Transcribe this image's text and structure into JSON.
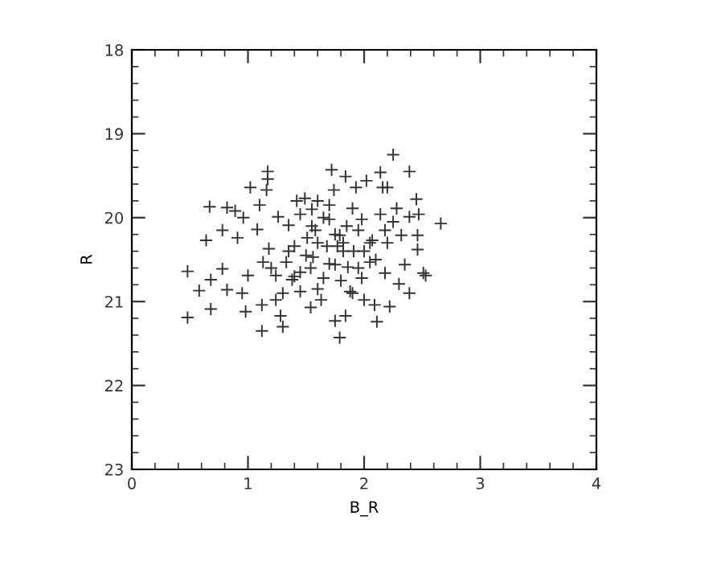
{
  "chart_data": {
    "type": "scatter",
    "xlabel": "B_R",
    "ylabel": "R",
    "xlim": [
      0,
      4
    ],
    "ylim": [
      23,
      18
    ],
    "xticks": [
      0,
      1,
      2,
      3,
      4
    ],
    "yticks": [
      18,
      19,
      20,
      21,
      22,
      23
    ],
    "marker": "cross",
    "grid": false,
    "legend": false,
    "series": [
      {
        "color": "#333333",
        "x": [
          0.48,
          0.48,
          0.58,
          0.64,
          0.67,
          0.68,
          0.68,
          0.78,
          0.78,
          0.82,
          0.82,
          0.89,
          0.91,
          0.95,
          0.96,
          0.98,
          1.02,
          1.0,
          1.08,
          1.1,
          1.12,
          1.12,
          1.17,
          1.17,
          1.16,
          1.18,
          1.13,
          1.24,
          1.26,
          1.28,
          1.3,
          1.24,
          1.33,
          1.35,
          1.38,
          1.4,
          1.42,
          1.45,
          1.45,
          1.49,
          1.51,
          1.54,
          1.54,
          1.56,
          1.58,
          1.6,
          1.63,
          1.65,
          1.68,
          1.7,
          1.72,
          1.74,
          1.75,
          1.75,
          1.77,
          1.79,
          1.79,
          1.82,
          1.84,
          1.84,
          1.86,
          1.88,
          1.9,
          1.91,
          1.93,
          1.95,
          1.98,
          1.98,
          2.0,
          2.02,
          2.05,
          2.07,
          2.09,
          2.11,
          2.14,
          2.14,
          2.16,
          2.18,
          2.18,
          2.2,
          2.22,
          2.25,
          2.28,
          2.3,
          2.32,
          2.35,
          2.39,
          2.39,
          2.39,
          2.45,
          2.46,
          2.46,
          2.47,
          2.51,
          2.66,
          2.53,
          1.45,
          1.6,
          1.7,
          1.82,
          1.95,
          1.55,
          1.65,
          1.75,
          1.85,
          2.05,
          1.35,
          1.4,
          1.5,
          1.8,
          1.9,
          2.1,
          2.2,
          1.3,
          1.6,
          1.7,
          1.2,
          2.25,
          2.0,
          1.55
        ],
        "values": [
          21.19,
          20.64,
          20.87,
          20.27,
          19.87,
          20.74,
          21.09,
          20.15,
          20.61,
          19.88,
          20.86,
          19.92,
          20.24,
          20.9,
          20.0,
          21.12,
          19.64,
          20.69,
          20.14,
          19.85,
          21.35,
          21.04,
          19.45,
          19.54,
          19.67,
          20.37,
          20.53,
          20.69,
          19.99,
          21.17,
          21.3,
          20.98,
          20.53,
          20.09,
          20.74,
          20.34,
          19.8,
          20.88,
          19.96,
          19.77,
          20.24,
          20.6,
          21.07,
          20.47,
          20.15,
          19.8,
          20.98,
          20.72,
          20.34,
          20.02,
          19.43,
          19.67,
          20.56,
          21.23,
          20.34,
          21.43,
          20.21,
          20.4,
          21.17,
          19.51,
          20.59,
          20.88,
          19.89,
          20.4,
          19.64,
          20.15,
          20.02,
          20.72,
          20.98,
          19.56,
          20.53,
          20.27,
          21.04,
          21.24,
          19.46,
          19.96,
          19.64,
          20.15,
          20.66,
          19.64,
          21.06,
          19.25,
          19.89,
          20.79,
          20.21,
          20.56,
          19.45,
          20.9,
          19.99,
          19.78,
          20.21,
          20.38,
          19.96,
          20.66,
          20.07,
          20.69,
          20.65,
          20.3,
          20.55,
          20.3,
          20.6,
          20.1,
          20.0,
          20.2,
          20.1,
          20.3,
          20.4,
          20.7,
          20.45,
          20.75,
          20.9,
          20.5,
          20.3,
          20.9,
          20.85,
          19.85,
          20.6,
          20.05,
          20.4,
          19.9
        ]
      }
    ]
  }
}
